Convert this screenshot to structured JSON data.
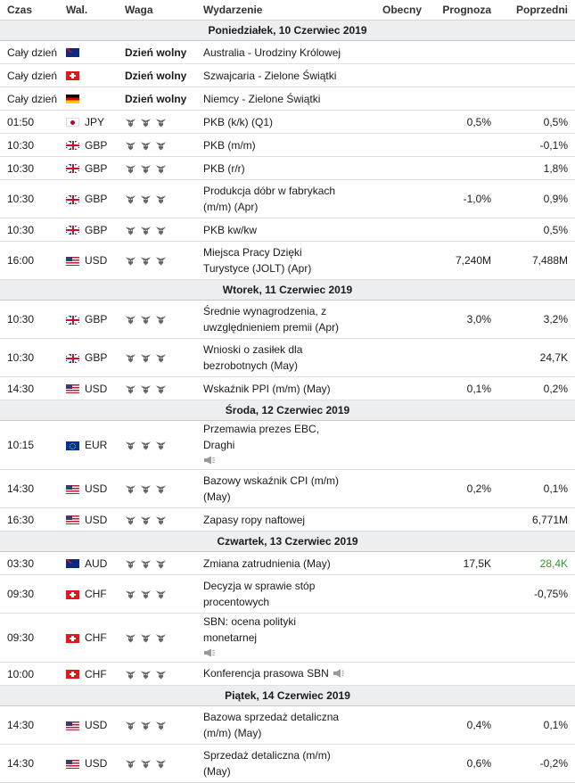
{
  "headers": {
    "time": "Czas",
    "currency": "Wal.",
    "weight": "Waga",
    "event": "Wydarzenie",
    "actual": "Obecny",
    "forecast": "Prognoza",
    "previous": "Poprzedni"
  },
  "holiday_label": "Dzień wolny",
  "days": [
    {
      "title": "Poniedziałek, 10 Czerwiec 2019",
      "rows": [
        {
          "time": "Cały dzień",
          "flag": "au",
          "currency": "",
          "holiday": true,
          "event": "Australia - Urodziny Królowej",
          "actual": "",
          "forecast": "",
          "previous": ""
        },
        {
          "time": "Cały dzień",
          "flag": "ch",
          "currency": "",
          "holiday": true,
          "event": "Szwajcaria - Zielone Świątki",
          "actual": "",
          "forecast": "",
          "previous": ""
        },
        {
          "time": "Cały dzień",
          "flag": "de",
          "currency": "",
          "holiday": true,
          "event": "Niemcy - Zielone Świątki",
          "actual": "",
          "forecast": "",
          "previous": ""
        },
        {
          "time": "01:50",
          "flag": "jp",
          "currency": "JPY",
          "event": "PKB (k/k) (Q1)",
          "actual": "",
          "forecast": "0,5%",
          "previous": "0,5%"
        },
        {
          "time": "10:30",
          "flag": "gb",
          "currency": "GBP",
          "event": "PKB (m/m)",
          "actual": "",
          "forecast": "",
          "previous": "-0,1%"
        },
        {
          "time": "10:30",
          "flag": "gb",
          "currency": "GBP",
          "event": "PKB (r/r)",
          "actual": "",
          "forecast": "",
          "previous": "1,8%"
        },
        {
          "time": "10:30",
          "flag": "gb",
          "currency": "GBP",
          "event": "Produkcja dóbr w fabrykach (m/m) (Apr)",
          "actual": "",
          "forecast": "-1,0%",
          "previous": "0,9%"
        },
        {
          "time": "10:30",
          "flag": "gb",
          "currency": "GBP",
          "event": "PKB kw/kw",
          "actual": "",
          "forecast": "",
          "previous": "0,5%"
        },
        {
          "time": "16:00",
          "flag": "us",
          "currency": "USD",
          "event": "Miejsca Pracy Dzięki Turystyce (JOLT) (Apr)",
          "actual": "",
          "forecast": "7,240M",
          "previous": "7,488M"
        }
      ]
    },
    {
      "title": "Wtorek, 11 Czerwiec 2019",
      "rows": [
        {
          "time": "10:30",
          "flag": "gb",
          "currency": "GBP",
          "event": "Średnie wynagrodzenia, z uwzględnieniem premii (Apr)",
          "actual": "",
          "forecast": "3,0%",
          "previous": "3,2%"
        },
        {
          "time": "10:30",
          "flag": "gb",
          "currency": "GBP",
          "event": "Wnioski o zasiłek dla bezrobotnych (May)",
          "actual": "",
          "forecast": "",
          "previous": "24,7K"
        },
        {
          "time": "14:30",
          "flag": "us",
          "currency": "USD",
          "event": "Wskaźnik PPI (m/m) (May)",
          "actual": "",
          "forecast": "0,1%",
          "previous": "0,2%"
        }
      ]
    },
    {
      "title": "Środa, 12 Czerwiec 2019",
      "rows": [
        {
          "time": "10:15",
          "flag": "eu",
          "currency": "EUR",
          "event": "Przemawia prezes EBC, Draghi",
          "speech": true,
          "actual": "",
          "forecast": "",
          "previous": ""
        },
        {
          "time": "14:30",
          "flag": "us",
          "currency": "USD",
          "event": "Bazowy wskaźnik CPI (m/m) (May)",
          "actual": "",
          "forecast": "0,2%",
          "previous": "0,1%"
        },
        {
          "time": "16:30",
          "flag": "us",
          "currency": "USD",
          "event": "Zapasy ropy naftowej",
          "actual": "",
          "forecast": "",
          "previous": "6,771M"
        }
      ]
    },
    {
      "title": "Czwartek, 13 Czerwiec 2019",
      "rows": [
        {
          "time": "03:30",
          "flag": "au",
          "currency": "AUD",
          "event": "Zmiana zatrudnienia (May)",
          "actual": "",
          "forecast": "17,5K",
          "previous": "28,4K",
          "previous_color": "green"
        },
        {
          "time": "09:30",
          "flag": "ch",
          "currency": "CHF",
          "event": "Decyzja w sprawie stóp procentowych",
          "actual": "",
          "forecast": "",
          "previous": "-0,75%"
        },
        {
          "time": "09:30",
          "flag": "ch",
          "currency": "CHF",
          "event": "SBN: ocena polityki monetarnej",
          "speech": true,
          "actual": "",
          "forecast": "",
          "previous": ""
        },
        {
          "time": "10:00",
          "flag": "ch",
          "currency": "CHF",
          "event": "Konferencja prasowa SBN",
          "speech_inline": true,
          "actual": "",
          "forecast": "",
          "previous": ""
        }
      ]
    },
    {
      "title": "Piątek, 14 Czerwiec 2019",
      "rows": [
        {
          "time": "14:30",
          "flag": "us",
          "currency": "USD",
          "event": "Bazowa sprzedaż detaliczna (m/m) (May)",
          "actual": "",
          "forecast": "0,4%",
          "previous": "0,1%"
        },
        {
          "time": "14:30",
          "flag": "us",
          "currency": "USD",
          "event": "Sprzedaż detaliczna (m/m) (May)",
          "actual": "",
          "forecast": "0,6%",
          "previous": "-0,2%"
        }
      ]
    }
  ],
  "icons": {
    "weight": "bull-icon",
    "speech": "megaphone-icon"
  },
  "colors": {
    "day_header_bg": "#eceef0",
    "positive": "#2a9d2a"
  }
}
